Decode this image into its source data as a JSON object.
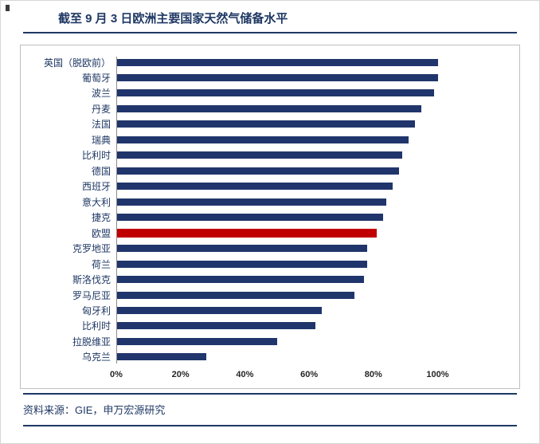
{
  "title": "截至 9 月 3 日欧洲主要国家天然气储备水平",
  "source": "资料来源：GIE，申万宏源研究",
  "colors": {
    "bar": "#20356B",
    "highlight": "#C00000",
    "accent": "#1F3864"
  },
  "chart_data": {
    "type": "bar",
    "orientation": "horizontal",
    "title": "截至 9 月 3 日欧洲主要国家天然气储备水平",
    "categories": [
      "英国（脱欧前）",
      "葡萄牙",
      "波兰",
      "丹麦",
      "法国",
      "瑞典",
      "比利时",
      "德国",
      "西班牙",
      "意大利",
      "捷克",
      "欧盟",
      "克罗地亚",
      "荷兰",
      "斯洛伐克",
      "罗马尼亚",
      "匈牙利",
      "比利时",
      "拉脱维亚",
      "乌克兰"
    ],
    "values": [
      100,
      100,
      99,
      95,
      93,
      91,
      89,
      88,
      86,
      84,
      83,
      81,
      78,
      78,
      77,
      74,
      64,
      62,
      50,
      28
    ],
    "highlight_index": 11,
    "highlight_category": "欧盟",
    "x_ticks": [
      "0%",
      "20%",
      "40%",
      "60%",
      "80%",
      "100%"
    ],
    "xlim": [
      0,
      100
    ],
    "grid": false,
    "legend": false
  }
}
